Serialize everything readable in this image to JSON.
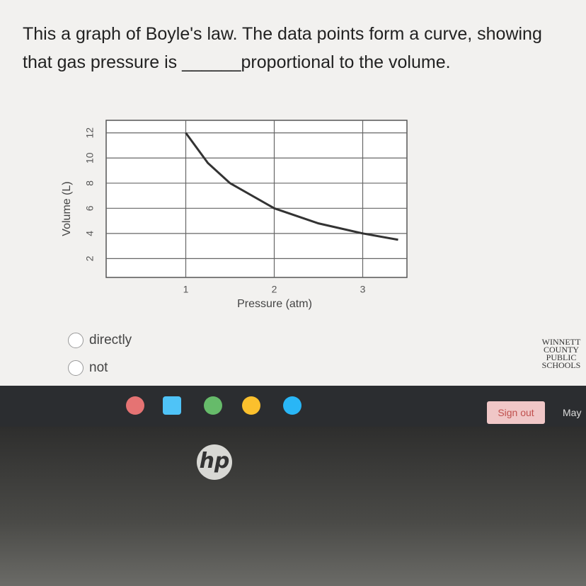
{
  "question": "This a graph of Boyle's law. The data points form a curve, showing that gas pressure is ______proportional to the volume.",
  "chart_data": {
    "type": "line",
    "xlabel": "Pressure (atm)",
    "ylabel": "Volume (L)",
    "x": [
      1,
      1.25,
      1.5,
      2,
      2.5,
      3,
      3.4
    ],
    "series": [
      {
        "color": "#333333",
        "values": [
          12,
          9.6,
          8,
          6,
          4.8,
          4,
          3.5
        ]
      }
    ],
    "xlim": [
      0.1,
      3.5
    ],
    "ylim": [
      0.5,
      13
    ],
    "xticks": [
      1,
      2,
      3
    ],
    "yticks": [
      2,
      4,
      6,
      8,
      10,
      12
    ],
    "grid": true
  },
  "options": [
    "directly",
    "not"
  ],
  "logo": [
    "WINNETT",
    "COUNTY",
    "PUBLIC",
    "SCHOOLS"
  ],
  "taskbar": {
    "sign_out": "Sign out",
    "date": "May"
  },
  "brand": "hp"
}
